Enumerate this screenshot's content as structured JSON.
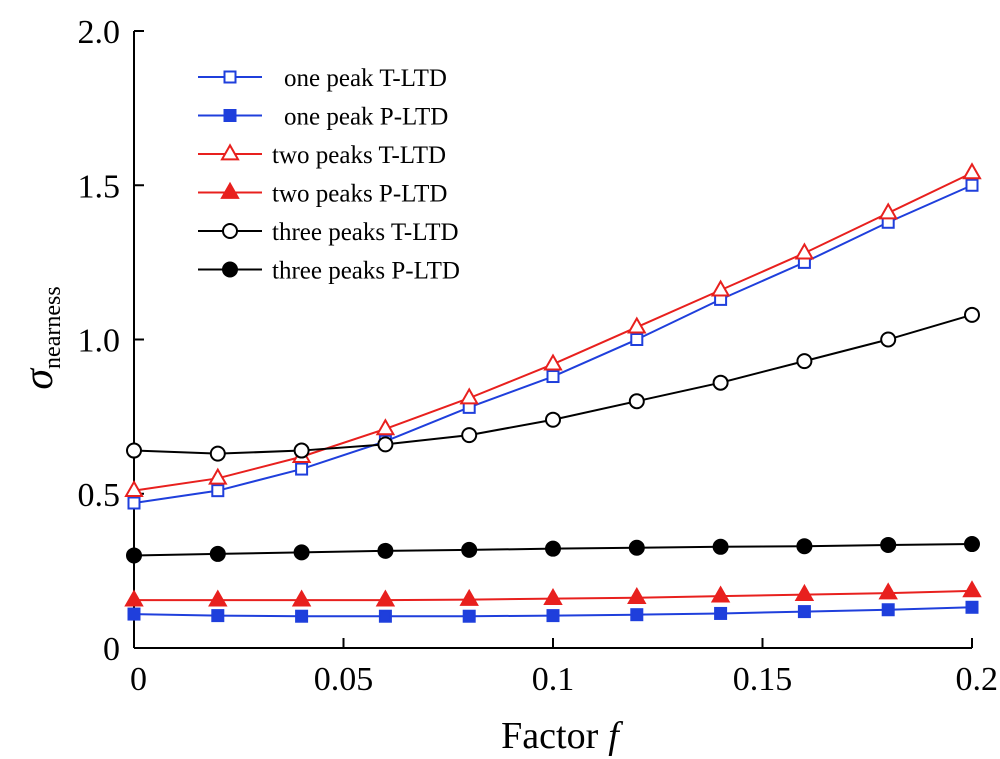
{
  "chart_data": {
    "type": "line",
    "title": "",
    "xlabel": "Factor",
    "xlabel_var": "f",
    "ylabel_symbol": "σ",
    "ylabel_subscript": "nearness",
    "xlim": [
      0,
      0.2
    ],
    "ylim": [
      0,
      2.0
    ],
    "x_ticks": [
      0,
      0.05,
      0.1,
      0.15,
      0.2
    ],
    "x_tick_labels": [
      "0",
      "0.05",
      "0.1",
      "0.15",
      "0.2"
    ],
    "y_ticks": [
      0,
      0.5,
      1.0,
      1.5,
      2.0
    ],
    "y_tick_labels": [
      "0",
      "0.5",
      "1.0",
      "1.5",
      "2.0"
    ],
    "grid": false,
    "legend_position": "top-left",
    "x": [
      0,
      0.02,
      0.04,
      0.06,
      0.08,
      0.1,
      0.12,
      0.14,
      0.16,
      0.18,
      0.2
    ],
    "series": [
      {
        "name": "one peak T-LTD",
        "color": "#1f3fdc",
        "marker": "square-open",
        "values": [
          0.47,
          0.51,
          0.58,
          0.67,
          0.78,
          0.88,
          1.0,
          1.13,
          1.25,
          1.38,
          1.5
        ]
      },
      {
        "name": "one peak P-LTD",
        "color": "#1f3fdc",
        "marker": "square-filled",
        "values": [
          0.11,
          0.105,
          0.103,
          0.103,
          0.103,
          0.105,
          0.108,
          0.112,
          0.118,
          0.124,
          0.132
        ]
      },
      {
        "name": "two peaks T-LTD",
        "color": "#e8201e",
        "marker": "triangle-open",
        "values": [
          0.51,
          0.55,
          0.62,
          0.71,
          0.81,
          0.92,
          1.04,
          1.16,
          1.28,
          1.41,
          1.54
        ]
      },
      {
        "name": "two peaks P-LTD",
        "color": "#e8201e",
        "marker": "triangle-filled",
        "values": [
          0.155,
          0.155,
          0.155,
          0.155,
          0.157,
          0.16,
          0.163,
          0.168,
          0.173,
          0.178,
          0.185
        ]
      },
      {
        "name": "three peaks T-LTD",
        "color": "#000000",
        "marker": "circle-open",
        "values": [
          0.64,
          0.63,
          0.64,
          0.66,
          0.69,
          0.74,
          0.8,
          0.86,
          0.93,
          1.0,
          1.08
        ]
      },
      {
        "name": "three peaks P-LTD",
        "color": "#000000",
        "marker": "circle-filled",
        "values": [
          0.3,
          0.305,
          0.31,
          0.315,
          0.318,
          0.322,
          0.325,
          0.328,
          0.33,
          0.334,
          0.337
        ]
      }
    ]
  }
}
